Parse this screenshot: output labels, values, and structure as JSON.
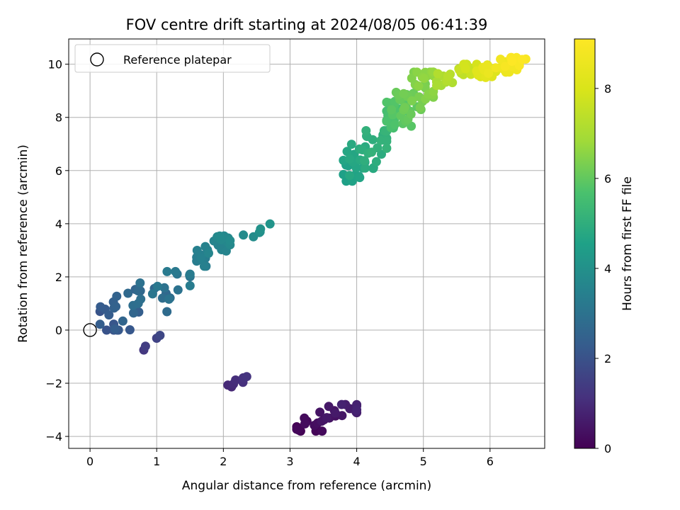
{
  "chart_data": {
    "type": "scatter",
    "title": "FOV centre drift starting at 2024/08/05 06:41:39",
    "xlabel": "Angular distance from reference (arcmin)",
    "ylabel": "Rotation from reference (arcmin)",
    "xlim": [
      -0.32,
      6.82
    ],
    "ylim": [
      -4.45,
      10.95
    ],
    "xticks": [
      0,
      1,
      2,
      3,
      4,
      5,
      6
    ],
    "yticks": [
      -4,
      -2,
      0,
      2,
      4,
      6,
      8,
      10
    ],
    "grid": true,
    "colormap": "viridis",
    "colorbar": {
      "label": "Hours from first FF file",
      "min": 0,
      "max": 9.1,
      "ticks": [
        0,
        2,
        4,
        6,
        8
      ]
    },
    "legend": {
      "position": "top-left",
      "entries": [
        {
          "label": "Reference platepar",
          "marker": "hollow-circle",
          "color": "#000000"
        }
      ]
    },
    "reference_point": {
      "x": 0,
      "y": 0
    },
    "clusters": [
      {
        "hours": [
          0.0,
          0.8
        ],
        "x": [
          3.1,
          4.0
        ],
        "y": [
          -3.8,
          -2.8
        ],
        "n": 30
      },
      {
        "hours": [
          0.9,
          1.2
        ],
        "x": [
          2.05,
          2.35
        ],
        "y": [
          -2.15,
          -1.75
        ],
        "n": 7
      },
      {
        "hours": [
          1.3,
          1.7
        ],
        "x": [
          0.8,
          1.05
        ],
        "y": [
          -0.75,
          -0.2
        ],
        "n": 4
      },
      {
        "hours": [
          2.0,
          3.3
        ],
        "x": [
          0.15,
          1.5
        ],
        "y": [
          0.0,
          2.2
        ],
        "n": 45
      },
      {
        "hours": [
          3.3,
          3.8
        ],
        "x": [
          1.6,
          2.1
        ],
        "y": [
          2.4,
          3.6
        ],
        "n": 28
      },
      {
        "hours": [
          3.8,
          4.1
        ],
        "x": [
          2.3,
          2.7
        ],
        "y": [
          3.5,
          4.05
        ],
        "n": 6
      },
      {
        "hours": [
          4.5,
          5.2
        ],
        "x": [
          3.8,
          4.45
        ],
        "y": [
          5.6,
          7.5
        ],
        "n": 45
      },
      {
        "hours": [
          5.5,
          6.7
        ],
        "x": [
          4.45,
          5.15
        ],
        "y": [
          7.6,
          9.7
        ],
        "n": 80
      },
      {
        "hours": [
          6.9,
          7.9
        ],
        "x": [
          5.2,
          5.8
        ],
        "y": [
          9.2,
          10.0
        ],
        "n": 25
      },
      {
        "hours": [
          8.0,
          9.1
        ],
        "x": [
          5.8,
          6.55
        ],
        "y": [
          9.5,
          10.25
        ],
        "n": 40
      }
    ]
  }
}
